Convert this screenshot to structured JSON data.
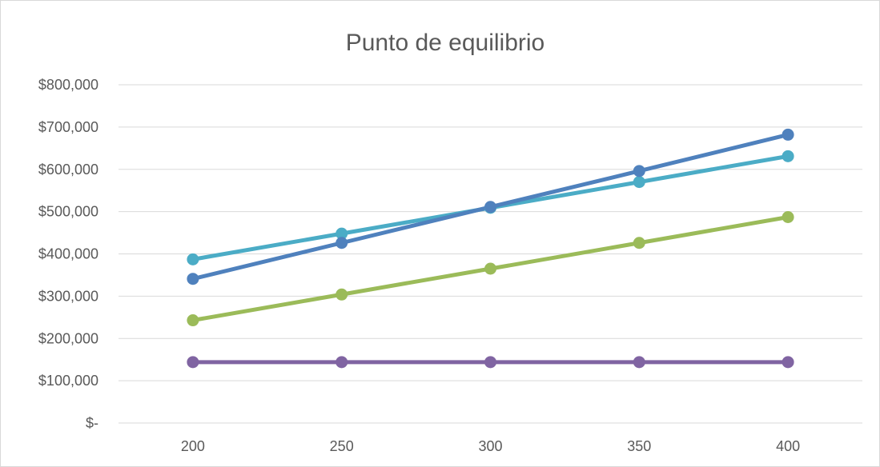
{
  "chart_data": {
    "type": "line",
    "title": "Punto de equilibrio",
    "xlabel": "",
    "ylabel": "",
    "x": [
      200,
      250,
      300,
      350,
      400
    ],
    "x_tick_labels": [
      "200",
      "250",
      "300",
      "350",
      "400"
    ],
    "ylim": [
      0,
      800000
    ],
    "y_ticks": [
      0,
      100000,
      200000,
      300000,
      400000,
      500000,
      600000,
      700000,
      800000
    ],
    "y_tick_labels": [
      "$-",
      "$100,000",
      "$200,000",
      "$300,000",
      "$400,000",
      "$500,000",
      "$600,000",
      "$700,000",
      "$800,000"
    ],
    "grid": true,
    "legend": "none",
    "series": [
      {
        "color": "#4BACC6",
        "values": [
          387000,
          448000,
          509000,
          570000,
          631000
        ]
      },
      {
        "color": "#4F81BD",
        "values": [
          341000,
          426000,
          511000,
          596000,
          682000
        ]
      },
      {
        "color": "#9BBB59",
        "values": [
          243000,
          304000,
          365000,
          426000,
          487000
        ]
      },
      {
        "color": "#8064A2",
        "values": [
          144000,
          144000,
          144000,
          144000,
          144000
        ]
      }
    ]
  }
}
